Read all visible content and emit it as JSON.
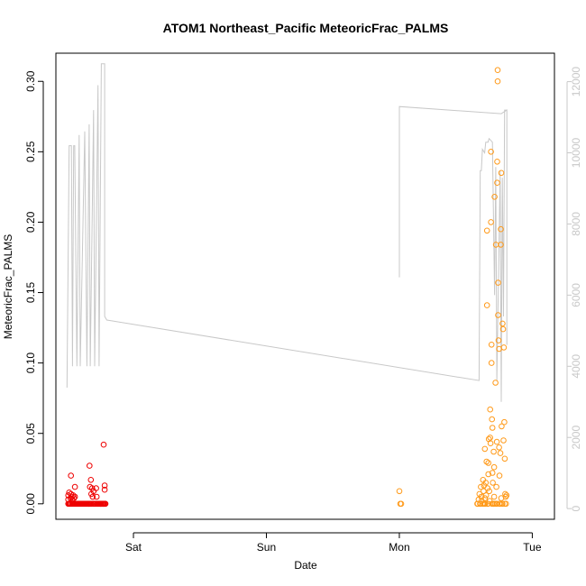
{
  "chart_data": {
    "type": "scatter",
    "title": "ATOM1 Northeast_Pacific MeteoricFrac_PALMS",
    "xlabel": "Date",
    "ylabel": "MeteoricFrac_PALMS",
    "x_ticks": [
      {
        "label": "Sat",
        "value": "Sat 00:00"
      },
      {
        "label": "Sun",
        "value": "Sun 00:00"
      },
      {
        "label": "Mon",
        "value": "Mon 00:00"
      },
      {
        "label": "Tue",
        "value": "Tue 00:00"
      }
    ],
    "xlim": [
      "Fri 10:00",
      "Tue 04:00"
    ],
    "ylim": [
      -0.011,
      0.32
    ],
    "y_ticks": [
      0.0,
      0.05,
      0.1,
      0.15,
      0.2,
      0.25,
      0.3
    ],
    "y_tick_labels": [
      "0.00",
      "0.05",
      "0.10",
      "0.15",
      "0.20",
      "0.25",
      "0.30"
    ],
    "y2_label": "",
    "y2lim": [
      -300,
      12800
    ],
    "y2_ticks": [
      0,
      2000,
      4000,
      6000,
      8000,
      10000,
      12000
    ],
    "y2_tick_labels": [
      "0",
      "2000",
      "4000",
      "6000",
      "8000",
      "10000",
      "12000"
    ],
    "grid": false,
    "legend": "none",
    "colors": {
      "series_red": "#ee0000",
      "series_orange": "#ff9a1a",
      "altitude_line": "#c8c8c8",
      "axis": "#000000"
    },
    "series": [
      {
        "color": "#ee0000",
        "points": [
          [
            "Fri 12:14",
            0.0
          ],
          [
            "Fri 12:14",
            0.003
          ],
          [
            "Fri 12:14",
            0.006
          ],
          [
            "Fri 12:24",
            0.0
          ],
          [
            "Fri 12:24",
            0.008
          ],
          [
            "Fri 12:33",
            0.0
          ],
          [
            "Fri 12:38",
            0.0
          ],
          [
            "Fri 12:38",
            0.004
          ],
          [
            "Fri 12:43",
            0.02
          ],
          [
            "Fri 12:43",
            0.007
          ],
          [
            "Fri 12:48",
            0.005
          ],
          [
            "Fri 12:52",
            0.0
          ],
          [
            "Fri 12:57",
            0.003
          ],
          [
            "Fri 13:02",
            0.0
          ],
          [
            "Fri 13:07",
            0.006
          ],
          [
            "Fri 13:12",
            0.0
          ],
          [
            "Fri 13:16",
            0.004
          ],
          [
            "Fri 13:21",
            0.0
          ],
          [
            "Fri 13:26",
            0.012
          ],
          [
            "Fri 13:26",
            0.005
          ],
          [
            "Fri 13:31",
            0.0
          ],
          [
            "Fri 13:40",
            0.0
          ],
          [
            "Fri 13:50",
            0.0
          ],
          [
            "Fri 14:00",
            0.0
          ],
          [
            "Fri 14:09",
            0.0
          ],
          [
            "Fri 14:19",
            0.0
          ],
          [
            "Fri 14:28",
            0.0
          ],
          [
            "Fri 14:38",
            0.0
          ],
          [
            "Fri 14:48",
            0.0
          ],
          [
            "Fri 14:57",
            0.0
          ],
          [
            "Fri 15:07",
            0.0
          ],
          [
            "Fri 15:16",
            0.0
          ],
          [
            "Fri 15:26",
            0.0
          ],
          [
            "Fri 15:36",
            0.0
          ],
          [
            "Fri 15:45",
            0.0
          ],
          [
            "Fri 15:55",
            0.0
          ],
          [
            "Fri 16:00",
            0.0
          ],
          [
            "Fri 16:04",
            0.0
          ],
          [
            "Fri 16:04",
            0.027
          ],
          [
            "Fri 16:09",
            0.012
          ],
          [
            "Fri 16:14",
            0.0
          ],
          [
            "Fri 16:19",
            0.017
          ],
          [
            "Fri 16:24",
            0.007
          ],
          [
            "Fri 16:28",
            0.0
          ],
          [
            "Fri 16:33",
            0.011
          ],
          [
            "Fri 16:38",
            0.005
          ],
          [
            "Fri 16:43",
            0.0
          ],
          [
            "Fri 16:48",
            0.009
          ],
          [
            "Fri 16:52",
            0.0
          ],
          [
            "Fri 17:02",
            0.0
          ],
          [
            "Fri 17:12",
            0.0
          ],
          [
            "Fri 17:16",
            0.011
          ],
          [
            "Fri 17:21",
            0.005
          ],
          [
            "Fri 17:26",
            0.0
          ],
          [
            "Fri 17:36",
            0.0
          ],
          [
            "Fri 17:45",
            0.0
          ],
          [
            "Fri 17:55",
            0.0
          ],
          [
            "Fri 18:00",
            0.0
          ],
          [
            "Fri 18:04",
            0.0
          ],
          [
            "Fri 18:09",
            0.0
          ],
          [
            "Fri 18:14",
            0.0
          ],
          [
            "Fri 18:24",
            0.0
          ],
          [
            "Fri 18:28",
            0.0
          ],
          [
            "Fri 18:33",
            0.0
          ],
          [
            "Fri 18:38",
            0.0
          ],
          [
            "Fri 18:38",
            0.042
          ],
          [
            "Fri 18:43",
            0.0
          ],
          [
            "Fri 18:48",
            0.013
          ],
          [
            "Fri 18:48",
            0.01
          ],
          [
            "Fri 18:52",
            0.0
          ],
          [
            "Fri 18:57",
            0.0
          ]
        ]
      },
      {
        "color": "#ff9a1a",
        "points": [
          [
            "Mon 00:00",
            0.009
          ],
          [
            "Mon 00:10",
            0.0
          ],
          [
            "Mon 00:20",
            0.0
          ],
          [
            "Mon 14:04",
            0.0
          ],
          [
            "Mon 14:19",
            0.003
          ],
          [
            "Mon 14:28",
            0.007
          ],
          [
            "Mon 14:33",
            0.0
          ],
          [
            "Mon 14:43",
            0.012
          ],
          [
            "Mon 14:48",
            0.005
          ],
          [
            "Mon 14:52",
            0.002
          ],
          [
            "Mon 15:02",
            0.0
          ],
          [
            "Mon 15:07",
            0.017
          ],
          [
            "Mon 15:12",
            0.009
          ],
          [
            "Mon 15:16",
            0.013
          ],
          [
            "Mon 15:21",
            0.0
          ],
          [
            "Mon 15:26",
            0.004
          ],
          [
            "Mon 15:26",
            0.039
          ],
          [
            "Mon 15:31",
            0.0
          ],
          [
            "Mon 15:36",
            0.015
          ],
          [
            "Mon 15:40",
            0.006
          ],
          [
            "Mon 15:45",
            0.03
          ],
          [
            "Mon 15:50",
            0.194
          ],
          [
            "Mon 15:50",
            0.141
          ],
          [
            "Mon 15:55",
            0.011
          ],
          [
            "Mon 16:00",
            0.0
          ],
          [
            "Mon 16:04",
            0.029
          ],
          [
            "Mon 16:04",
            0.021
          ],
          [
            "Mon 16:09",
            0.046
          ],
          [
            "Mon 16:14",
            0.009
          ],
          [
            "Mon 16:19",
            0.002
          ],
          [
            "Mon 16:24",
            0.067
          ],
          [
            "Mon 16:24",
            0.047
          ],
          [
            "Mon 16:28",
            0.043
          ],
          [
            "Mon 16:33",
            0.25
          ],
          [
            "Mon 16:33",
            0.2
          ],
          [
            "Mon 16:38",
            0.113
          ],
          [
            "Mon 16:38",
            0.1
          ],
          [
            "Mon 16:43",
            0.06
          ],
          [
            "Mon 16:48",
            0.054
          ],
          [
            "Mon 16:48",
            0.022
          ],
          [
            "Mon 16:52",
            0.015
          ],
          [
            "Mon 16:57",
            0.0
          ],
          [
            "Mon 17:02",
            0.037
          ],
          [
            "Mon 17:07",
            0.005
          ],
          [
            "Mon 17:07",
            0.026
          ],
          [
            "Mon 17:12",
            0.218
          ],
          [
            "Mon 17:16",
            0.0
          ],
          [
            "Mon 17:21",
            0.086
          ],
          [
            "Mon 17:26",
            0.184
          ],
          [
            "Mon 17:31",
            0.012
          ],
          [
            "Mon 17:36",
            0.044
          ],
          [
            "Mon 17:36",
            0.0
          ],
          [
            "Mon 17:40",
            0.243
          ],
          [
            "Mon 17:40",
            0.228
          ],
          [
            "Mon 17:45",
            0.308
          ],
          [
            "Mon 17:45",
            0.3
          ],
          [
            "Mon 17:50",
            0.157
          ],
          [
            "Mon 17:50",
            0.134
          ],
          [
            "Mon 17:55",
            0.116
          ],
          [
            "Mon 18:00",
            0.11
          ],
          [
            "Mon 18:00",
            0.04
          ],
          [
            "Mon 18:04",
            0.02
          ],
          [
            "Mon 18:09",
            0.0
          ],
          [
            "Mon 18:14",
            0.036
          ],
          [
            "Mon 18:19",
            0.184
          ],
          [
            "Mon 18:19",
            0.195
          ],
          [
            "Mon 18:24",
            0.235
          ],
          [
            "Mon 18:24",
            0.004
          ],
          [
            "Mon 18:28",
            0.055
          ],
          [
            "Mon 18:33",
            0.0
          ],
          [
            "Mon 18:38",
            0.128
          ],
          [
            "Mon 18:43",
            0.124
          ],
          [
            "Mon 18:48",
            0.045
          ],
          [
            "Mon 18:52",
            0.111
          ],
          [
            "Mon 18:57",
            0.058
          ],
          [
            "Mon 19:02",
            0.032
          ],
          [
            "Mon 19:07",
            0.007
          ],
          [
            "Mon 19:12",
            0.005
          ],
          [
            "Mon 19:16",
            0.0
          ],
          [
            "Mon 19:21",
            0.006
          ],
          [
            "Mon 14:09",
            0.0
          ],
          [
            "Mon 14:38",
            0.0
          ],
          [
            "Mon 15:16",
            0.0
          ],
          [
            "Mon 15:55",
            0.0
          ],
          [
            "Mon 16:43",
            0.0
          ],
          [
            "Mon 17:02",
            0.0
          ],
          [
            "Mon 17:31",
            0.0
          ],
          [
            "Mon 18:04",
            0.0
          ],
          [
            "Mon 18:38",
            0.0
          ],
          [
            "Mon 19:02",
            0.0
          ]
        ]
      }
    ],
    "secondary_line": {
      "color": "#c8c8c8",
      "points": [
        [
          "Fri 12:00",
          3400
        ],
        [
          "Fri 12:24",
          10200
        ],
        [
          "Fri 12:48",
          10200
        ],
        [
          "Fri 13:00",
          4000
        ],
        [
          "Fri 13:12",
          10200
        ],
        [
          "Fri 13:24",
          10200
        ],
        [
          "Fri 13:48",
          4000
        ],
        [
          "Fri 14:12",
          10500
        ],
        [
          "Fri 14:24",
          4000
        ],
        [
          "Fri 15:12",
          10600
        ],
        [
          "Fri 15:36",
          4000
        ],
        [
          "Fri 16:00",
          10800
        ],
        [
          "Fri 16:12",
          4000
        ],
        [
          "Fri 16:48",
          11200
        ],
        [
          "Fri 17:00",
          4000
        ],
        [
          "Fri 17:36",
          11900
        ],
        [
          "Fri 17:48",
          4000
        ],
        [
          "Fri 18:12",
          12500
        ],
        [
          "Fri 18:48",
          12500
        ],
        [
          "Fri 18:48",
          5400
        ],
        [
          "Fri 19:12",
          5300
        ],
        [
          "Mon 14:24",
          3600
        ],
        [
          "Mon 14:36",
          9500
        ],
        [
          "Mon 14:48",
          9500
        ],
        [
          "Mon 15:00",
          10100
        ],
        [
          "Mon 15:24",
          10000
        ],
        [
          "Mon 15:36",
          10300
        ],
        [
          "Mon 16:00",
          10300
        ],
        [
          "Mon 16:12",
          10400
        ],
        [
          "Mon 16:48",
          10300
        ],
        [
          "Mon 17:12",
          6000
        ],
        [
          "Mon 17:24",
          9600
        ],
        [
          "Mon 17:36",
          3600
        ],
        [
          "Mon 18:12",
          9500
        ],
        [
          "Mon 18:24",
          3000
        ],
        [
          "Mon 18:36",
          9300
        ],
        [
          "Mon 18:48",
          5400
        ],
        [
          "Mon 19:00",
          11200
        ],
        [
          "Mon 19:24",
          11200
        ],
        [
          "Mon 19:24",
          4600
        ],
        [
          "Mon 19:24",
          11200
        ],
        [
          "Mon 18:24",
          11100
        ],
        [
          "Mon 00:00",
          11300
        ],
        [
          "Mon 00:00",
          6500
        ]
      ]
    }
  }
}
